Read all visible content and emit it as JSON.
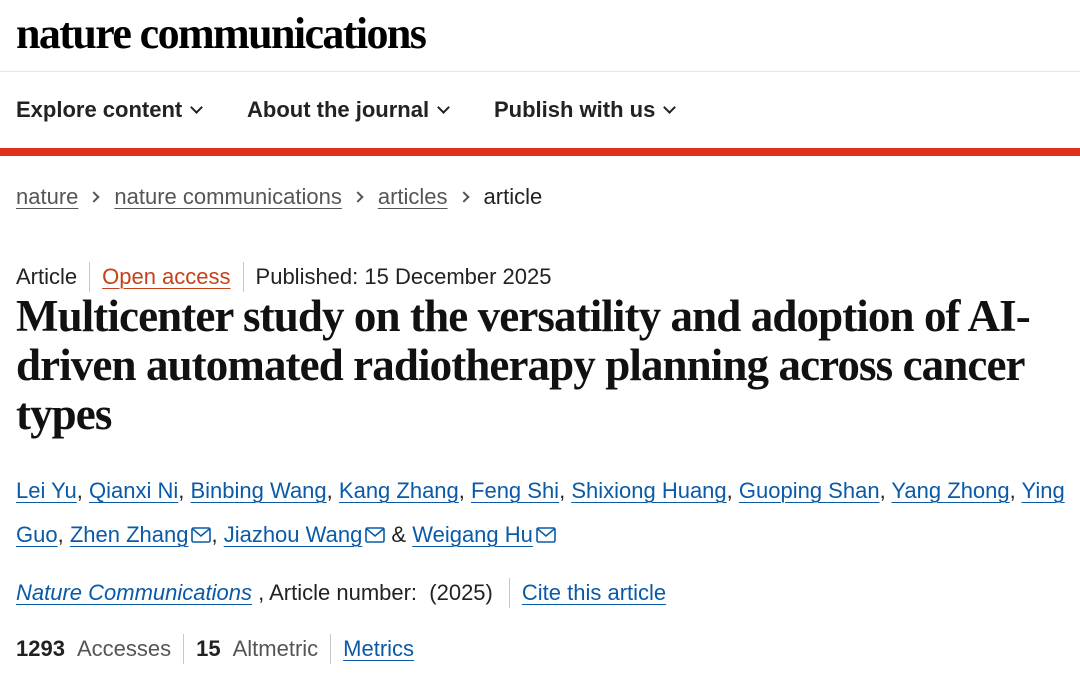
{
  "site": {
    "logo": "nature communications"
  },
  "nav": {
    "items": [
      {
        "label": "Explore content"
      },
      {
        "label": "About the journal"
      },
      {
        "label": "Publish with us"
      }
    ]
  },
  "breadcrumb": {
    "items": [
      "nature",
      "nature communications",
      "articles"
    ],
    "current": "article"
  },
  "article": {
    "type": "Article",
    "access": "Open access",
    "published": "Published: 15 December 2025",
    "title": "Multicenter study on the versatility and adoption of AI-driven automated radiotherapy planning across cancer types",
    "authors": [
      {
        "name": "Lei Yu",
        "corresponding": false
      },
      {
        "name": "Qianxi Ni",
        "corresponding": false
      },
      {
        "name": "Binbing Wang",
        "corresponding": false
      },
      {
        "name": "Kang Zhang",
        "corresponding": false
      },
      {
        "name": "Feng Shi",
        "corresponding": false
      },
      {
        "name": "Shixiong Huang",
        "corresponding": false
      },
      {
        "name": "Guoping Shan",
        "corresponding": false
      },
      {
        "name": "Yang Zhong",
        "corresponding": false
      },
      {
        "name": "Ying Guo",
        "corresponding": false
      },
      {
        "name": "Zhen Zhang",
        "corresponding": true
      },
      {
        "name": "Jiazhou Wang",
        "corresponding": true
      },
      {
        "name": "Weigang Hu",
        "corresponding": true
      }
    ],
    "author_separator": ", ",
    "author_last_separator": " & ",
    "citation": {
      "journal": "Nature Communications",
      "article_number_label": " , Article number:  (2025)",
      "cite_label": "Cite this article"
    },
    "metrics": {
      "accesses_value": "1293",
      "accesses_label": "Accesses",
      "altmetric_value": "15",
      "altmetric_label": "Altmetric",
      "metrics_link": "Metrics"
    }
  },
  "colors": {
    "accent_red": "#e0301e",
    "link_blue": "#0a5aa8",
    "open_access": "#c4421b"
  }
}
